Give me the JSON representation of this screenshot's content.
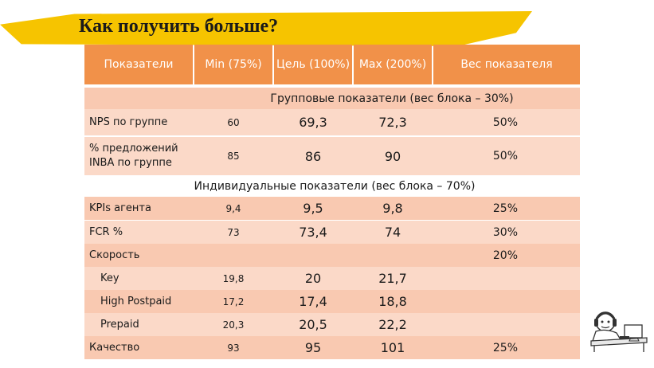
{
  "slide": {
    "title": "Как получить больше?"
  },
  "table": {
    "headers": [
      "Показатели",
      "Min (75%)",
      "Цель (100%)",
      "Max (200%)",
      "Вес показателя"
    ],
    "group_section": "Групповые показатели (вес блока – 30%)",
    "group_rows": [
      {
        "name": "NPS по группе",
        "min": "60",
        "target": "69,3",
        "max": "72,3",
        "weight": "50%"
      },
      {
        "name": "% предложений INBA по группе",
        "min": "85",
        "target": "86",
        "max": "90",
        "weight": "50%"
      }
    ],
    "individual_section": "Индивидуальные показатели (вес блока – 70%)",
    "individual_rows": [
      {
        "name": "KPIs агента",
        "min": "9,4",
        "target": "9,5",
        "max": "9,8",
        "weight": "25%"
      },
      {
        "name": "FCR %",
        "min": "73",
        "target": "73,4",
        "max": "74",
        "weight": "30%"
      },
      {
        "name": "Скорость",
        "min": "",
        "target": "",
        "max": "",
        "weight": "20%"
      },
      {
        "name": "Key",
        "min": "19,8",
        "target": "20",
        "max": "21,7",
        "weight": ""
      },
      {
        "name": "High Postpaid",
        "min": "17,2",
        "target": "17,4",
        "max": "18,8",
        "weight": ""
      },
      {
        "name": "Prepaid",
        "min": "20,3",
        "target": "20,5",
        "max": "22,2",
        "weight": ""
      },
      {
        "name": "Качество",
        "min": "93",
        "target": "95",
        "max": "101",
        "weight": "25%"
      }
    ]
  },
  "colors": {
    "header": "#f19149",
    "row_light": "#fbd9c8",
    "row_mid": "#f9c9b1",
    "title_highlight": "#f6c400"
  },
  "decoration": {
    "icon": "cartoon-person-at-desk-icon"
  }
}
